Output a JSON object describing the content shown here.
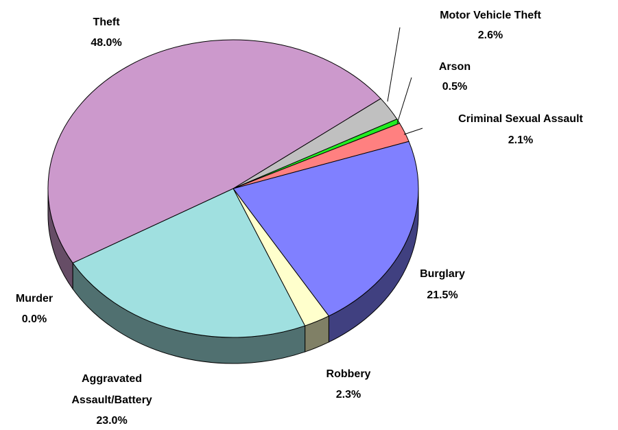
{
  "chart_data": {
    "type": "pie3d",
    "categories": [
      "Theft",
      "Motor Vehicle Theft",
      "Arson",
      "Criminal Sexual Assault",
      "Burglary",
      "Robbery",
      "Aggravated Assault/Battery",
      "Murder"
    ],
    "values": [
      48.0,
      2.6,
      0.5,
      2.1,
      21.5,
      2.3,
      23.0,
      0.0
    ],
    "value_labels": [
      "48.0%",
      "2.6%",
      "0.5%",
      "2.1%",
      "21.5%",
      "2.3%",
      "23.0%",
      "0.0%"
    ],
    "colors": [
      "#cc99cc",
      "#c0c0c0",
      "#22ee22",
      "#ff8080",
      "#8080ff",
      "#ffffcc",
      "#a0e0e0",
      "#993366"
    ]
  }
}
